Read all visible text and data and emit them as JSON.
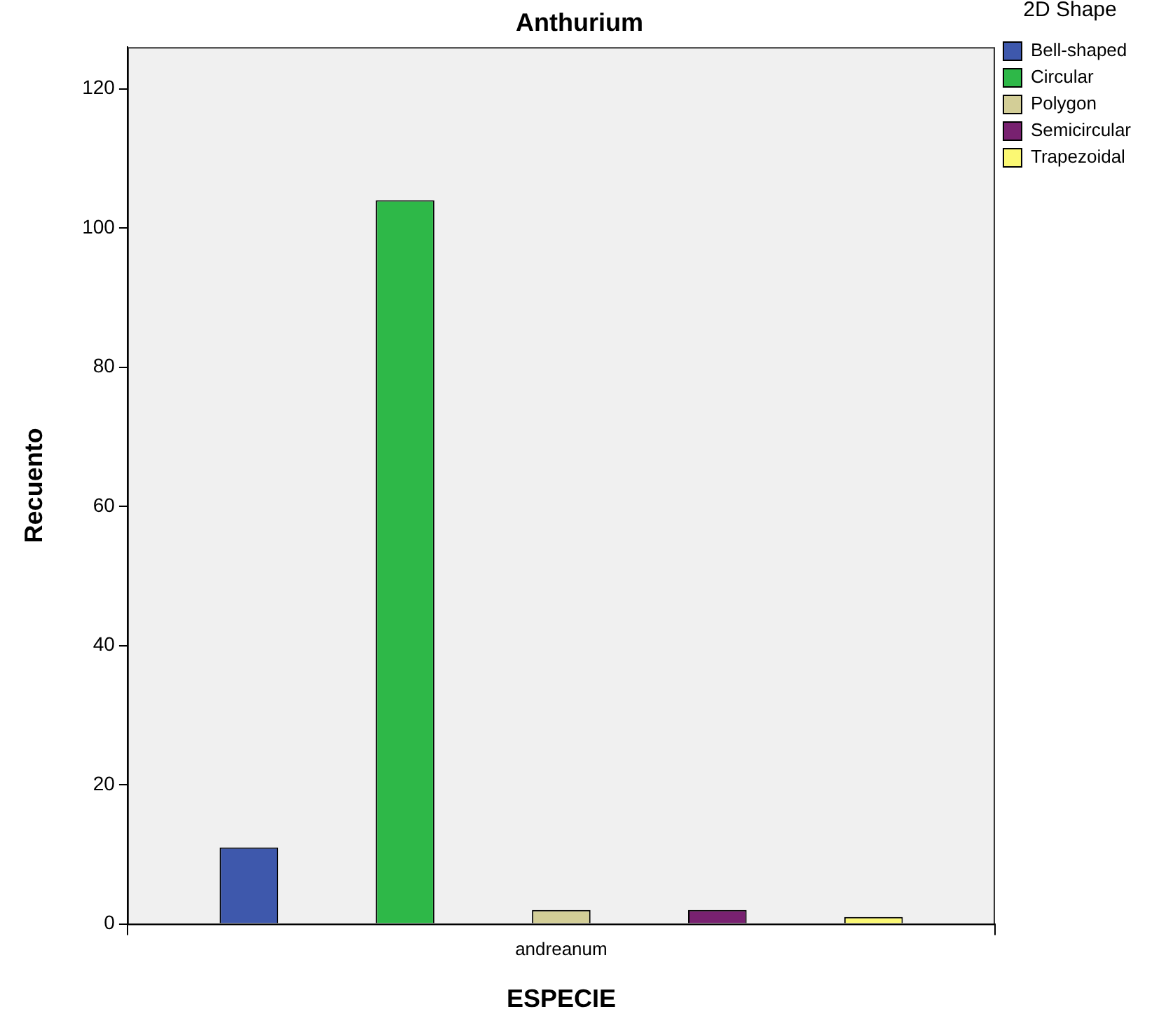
{
  "chart_data": {
    "type": "bar",
    "title": "Anthurium",
    "xlabel": "ESPECIE",
    "ylabel": "Recuento",
    "legend_title": "2D Shape",
    "legend": "top right",
    "grid": false,
    "categories": [
      "andreanum"
    ],
    "series": [
      {
        "name": "Bell-shaped",
        "color": "#3e58ac",
        "values": [
          11
        ]
      },
      {
        "name": "Circular",
        "color": "#2eb848",
        "values": [
          104
        ]
      },
      {
        "name": "Polygon",
        "color": "#d3ce97",
        "values": [
          2
        ]
      },
      {
        "name": "Semicircular",
        "color": "#782170",
        "values": [
          2
        ]
      },
      {
        "name": "Trapezoidal",
        "color": "#fbf873",
        "values": [
          1
        ]
      }
    ],
    "ylim": [
      0,
      126
    ],
    "yticks": [
      0,
      20,
      40,
      60,
      80,
      100,
      120
    ]
  }
}
